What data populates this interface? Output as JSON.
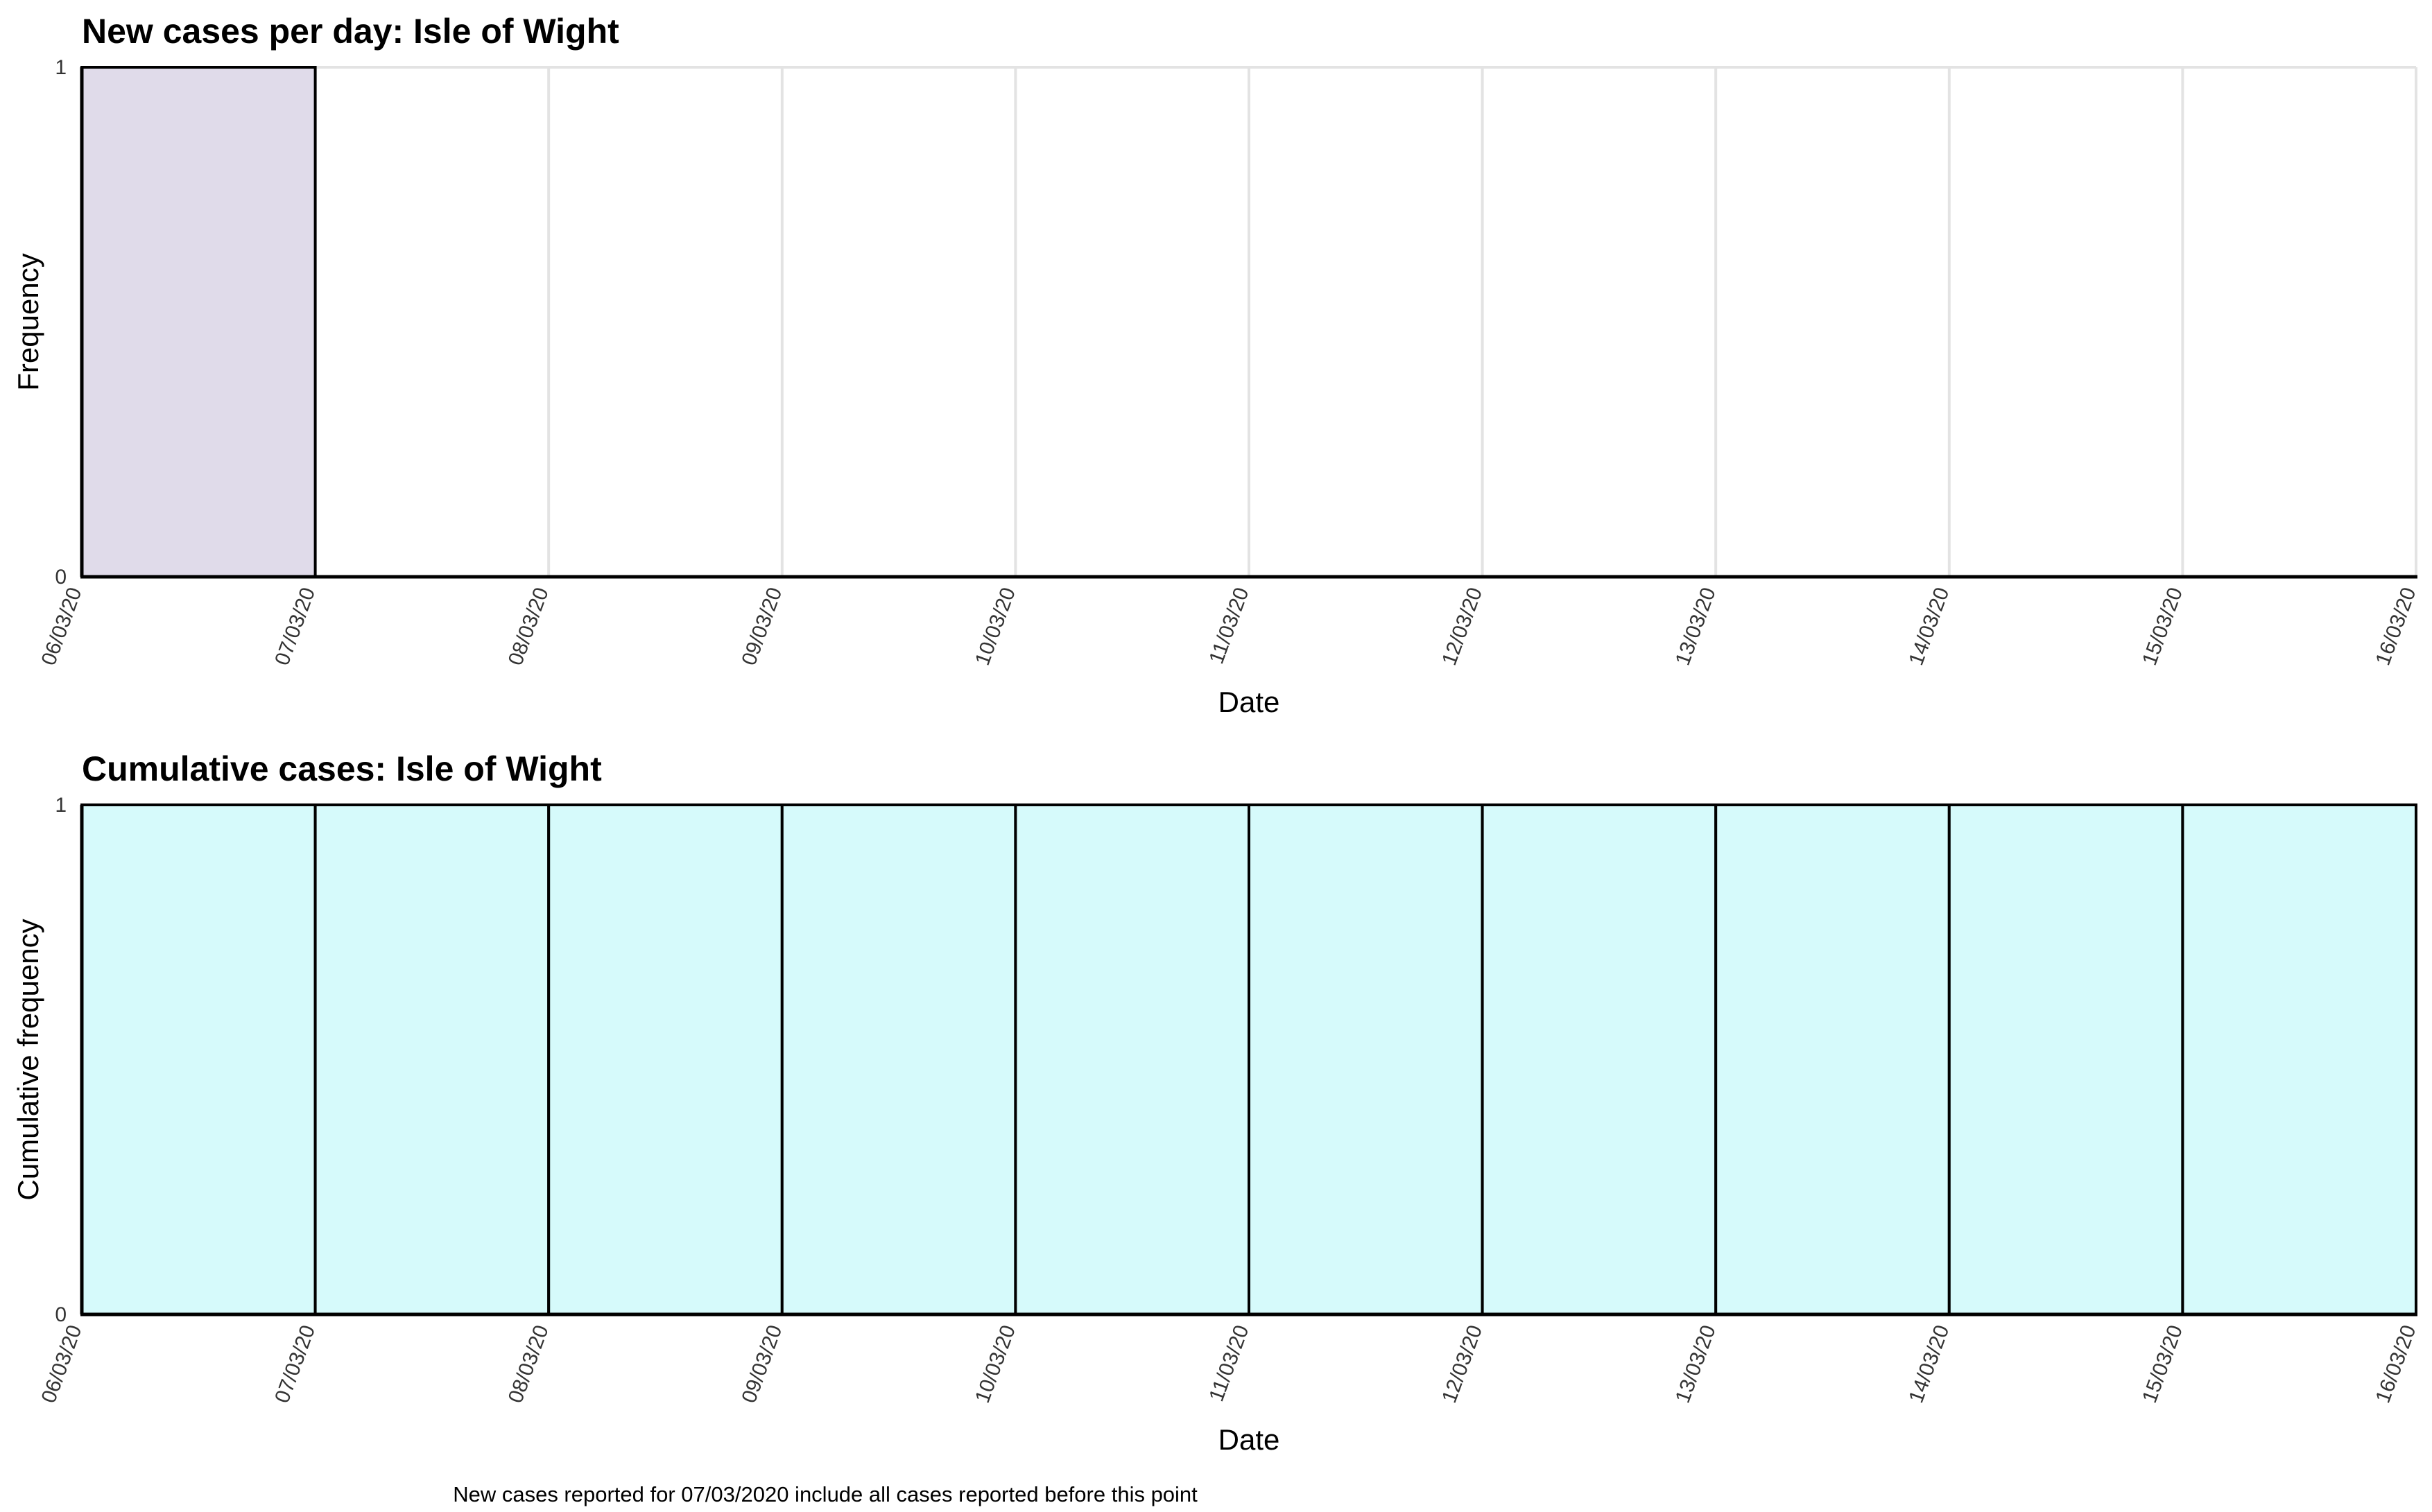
{
  "chart_data": [
    {
      "id": "daily",
      "type": "bar",
      "title": "New cases per day: Isle of Wight",
      "xlabel": "Date",
      "ylabel": "Frequency",
      "ylim": [
        0,
        1
      ],
      "yticks": [
        0,
        1
      ],
      "grid": true,
      "bar_color": "#e0dbea",
      "x_ticks": [
        "06/03/20",
        "07/03/20",
        "08/03/20",
        "09/03/20",
        "10/03/20",
        "11/03/20",
        "12/03/20",
        "13/03/20",
        "14/03/20",
        "15/03/20",
        "16/03/20"
      ],
      "values": [
        1,
        0,
        0,
        0,
        0,
        0,
        0,
        0,
        0,
        0
      ]
    },
    {
      "id": "cumulative",
      "type": "bar",
      "title": "Cumulative cases: Isle of Wight",
      "xlabel": "Date",
      "ylabel": "Cumulative frequency",
      "ylim": [
        0,
        1
      ],
      "yticks": [
        0,
        1
      ],
      "grid": true,
      "bar_color": "#d6fafb",
      "x_ticks": [
        "06/03/20",
        "07/03/20",
        "08/03/20",
        "09/03/20",
        "10/03/20",
        "11/03/20",
        "12/03/20",
        "13/03/20",
        "14/03/20",
        "15/03/20",
        "16/03/20"
      ],
      "values": [
        1,
        1,
        1,
        1,
        1,
        1,
        1,
        1,
        1,
        1
      ]
    }
  ],
  "footnote": "New cases reported for 07/03/2020 include all cases reported before this point"
}
